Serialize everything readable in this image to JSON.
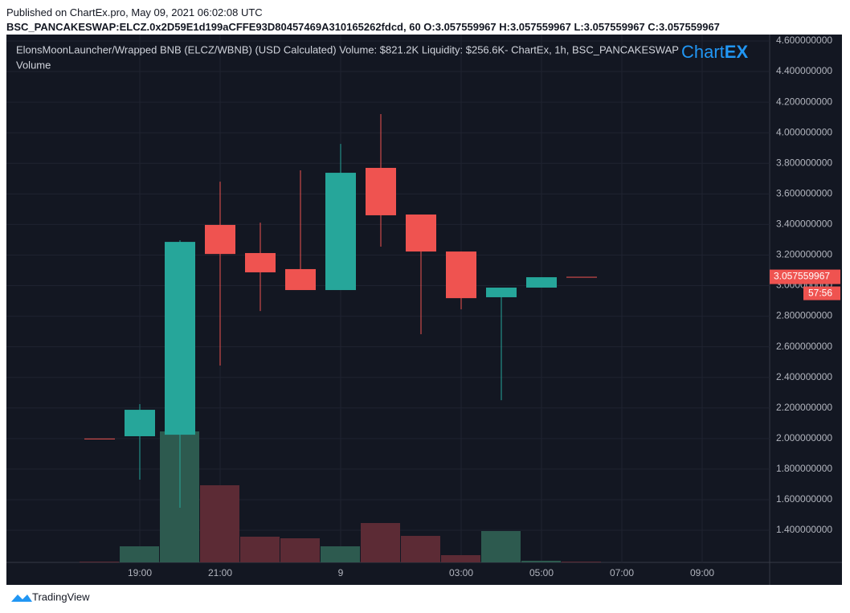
{
  "header": {
    "published": "Published on ChartEx.pro, May 09, 2021 06:02:08 UTC",
    "symbol_line": "BSC_PANCAKESWAP:ELCZ.0x2D59E1d199aCFFE93D80457469A310165262fdcd, 60  O:3.057559967  H:3.057559967  L:3.057559967  C:3.057559967"
  },
  "chart_data": {
    "type": "candlestick",
    "title": "ElonsMoonLauncher/Wrapped BNB (ELCZ/WBNB) (USD Calculated) Volume: $821.2K Liquidity: $256.6K- ChartEx, 1h, BSC_PANCAKESWAP",
    "volume_label": "Volume",
    "logo": {
      "a": "Chart",
      "b": "EX"
    },
    "x": [
      18,
      19,
      20,
      21,
      22,
      23,
      24,
      25,
      26,
      27,
      28,
      29,
      30
    ],
    "open": [
      2.0,
      2.015,
      2.025,
      3.397,
      3.213,
      3.108,
      2.971,
      3.77,
      3.465,
      3.223,
      2.924,
      2.987,
      3.057559967
    ],
    "high": [
      2.0,
      2.225,
      3.297,
      3.68,
      3.412,
      3.754,
      3.927,
      4.122,
      3.465,
      3.223,
      2.987,
      3.055,
      3.057559967
    ],
    "low": [
      2.0,
      1.731,
      1.547,
      2.477,
      2.834,
      2.971,
      2.971,
      3.255,
      2.682,
      2.845,
      2.251,
      2.987,
      3.057559967
    ],
    "close": [
      2.0,
      2.188,
      3.286,
      3.207,
      3.087,
      2.971,
      3.738,
      3.46,
      3.223,
      2.918,
      2.987,
      3.055,
      3.057559967
    ],
    "volume": [
      1,
      20,
      163,
      96,
      32,
      30,
      20,
      49,
      33,
      9,
      39,
      2,
      1
    ],
    "up_color": "#26a69a",
    "down_color": "#ef5350",
    "up_volume_color": "#2d5a4f",
    "down_volume_color": "#5c2b35",
    "xlim": [
      15.68,
      34.68
    ],
    "xticks": [
      {
        "value": 19,
        "label": "19:00"
      },
      {
        "value": 21,
        "label": "21:00"
      },
      {
        "value": 24,
        "label": "9"
      },
      {
        "value": 27,
        "label": "03:00"
      },
      {
        "value": 29,
        "label": "05:00"
      },
      {
        "value": 31,
        "label": "07:00"
      },
      {
        "value": 33,
        "label": "09:00"
      }
    ],
    "ylim": [
      1.19,
      4.642
    ],
    "yticks": [
      {
        "value": 1.4,
        "label": "1.400000000"
      },
      {
        "value": 1.6,
        "label": "1.600000000"
      },
      {
        "value": 1.8,
        "label": "1.800000000"
      },
      {
        "value": 2.0,
        "label": "2.000000000"
      },
      {
        "value": 2.2,
        "label": "2.200000000"
      },
      {
        "value": 2.4,
        "label": "2.400000000"
      },
      {
        "value": 2.6,
        "label": "2.600000000"
      },
      {
        "value": 2.8,
        "label": "2.800000000"
      },
      {
        "value": 3.0,
        "label": "3.000000000"
      },
      {
        "value": 3.2,
        "label": "3.200000000"
      },
      {
        "value": 3.4,
        "label": "3.400000000"
      },
      {
        "value": 3.6,
        "label": "3.600000000"
      },
      {
        "value": 3.8,
        "label": "3.800000000"
      },
      {
        "value": 4.0,
        "label": "4.000000000"
      },
      {
        "value": 4.2,
        "label": "4.200000000"
      },
      {
        "value": 4.4,
        "label": "4.400000000"
      },
      {
        "value": 4.6,
        "label": "4.600000000"
      }
    ],
    "last_price": {
      "value": 3.057559967,
      "label": "3.057559967"
    },
    "countdown": "57:56",
    "grid": true
  },
  "footer": {
    "brand": "TradingView"
  }
}
